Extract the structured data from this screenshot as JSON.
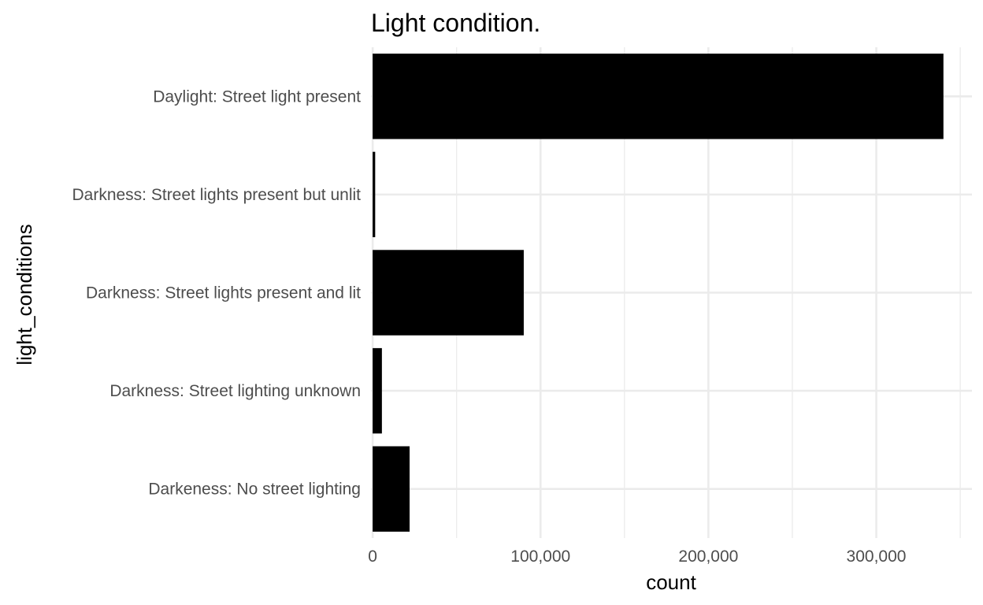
{
  "chart_data": {
    "type": "bar",
    "orientation": "horizontal",
    "title": "Light condition.",
    "xlabel": "count",
    "ylabel": "light_conditions",
    "categories": [
      "Daylight: Street light present",
      "Darkness: Street lights present but unlit",
      "Darkness: Street lights present and lit",
      "Darkness: Street lighting unknown",
      "Darkeness: No street lighting"
    ],
    "values": [
      340000,
      1500,
      90000,
      5500,
      22000
    ],
    "xlim": [
      -1000,
      357000
    ],
    "xticks": [
      0,
      100000,
      200000,
      300000
    ],
    "xtick_labels": [
      "0",
      "100,000",
      "200,000",
      "300,000"
    ],
    "bar_color": "#000000",
    "grid": true
  }
}
